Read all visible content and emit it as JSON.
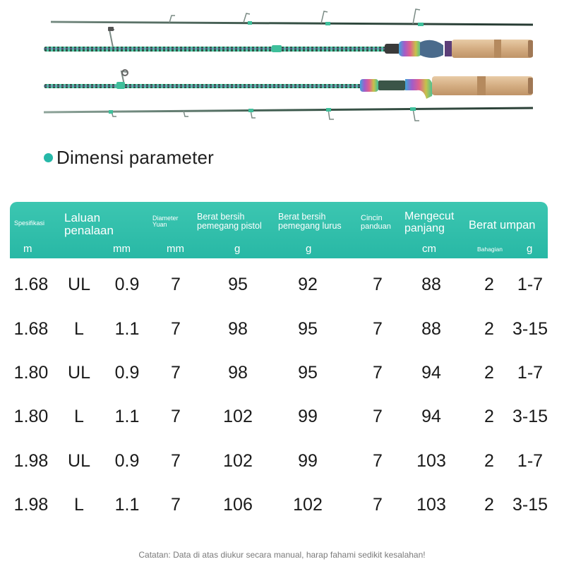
{
  "section_title": "Dimensi parameter",
  "header": {
    "spesifikasi": "Spesifikasi",
    "laluan": [
      "Laluan",
      "penalaan"
    ],
    "diameter": [
      "Diameter",
      "Yuan"
    ],
    "berat_pistol": [
      "Berat bersih",
      "pemegang pistol"
    ],
    "berat_lurus": [
      "Berat bersih",
      "pemegang lurus"
    ],
    "cincin": [
      "Cincin",
      "panduan"
    ],
    "mengecut": [
      "Mengecut",
      "panjang"
    ],
    "berat_umpan": "Berat umpan"
  },
  "units": {
    "spesifikasi": "m",
    "laluan": "mm",
    "diameter": "mm",
    "berat_pistol": "g",
    "berat_lurus": "g",
    "mengecut": "cm",
    "bahagian": "Bahagian",
    "berat_umpan": "g"
  },
  "rows": [
    [
      "1.68",
      "UL",
      "0.9",
      "7",
      "95",
      "92",
      "7",
      "88",
      "2",
      "1-7"
    ],
    [
      "1.68",
      "L",
      "1.1",
      "7",
      "98",
      "95",
      "7",
      "88",
      "2",
      "3-15"
    ],
    [
      "1.80",
      "UL",
      "0.9",
      "7",
      "98",
      "95",
      "7",
      "94",
      "2",
      "1-7"
    ],
    [
      "1.80",
      "L",
      "1.1",
      "7",
      "102",
      "99",
      "7",
      "94",
      "2",
      "3-15"
    ],
    [
      "1.98",
      "UL",
      "0.9",
      "7",
      "102",
      "99",
      "7",
      "103",
      "2",
      "1-7"
    ],
    [
      "1.98",
      "L",
      "1.1",
      "7",
      "106",
      "102",
      "7",
      "103",
      "2",
      "3-15"
    ]
  ],
  "note": "Catatan: Data di atas diukur secara manual, harap fahami sedikit kesalahan!",
  "colors": {
    "accent": "#2dbba8",
    "cork": "#d8b48c",
    "blank": "#2f4a3f",
    "text": "#1a1a1a"
  }
}
